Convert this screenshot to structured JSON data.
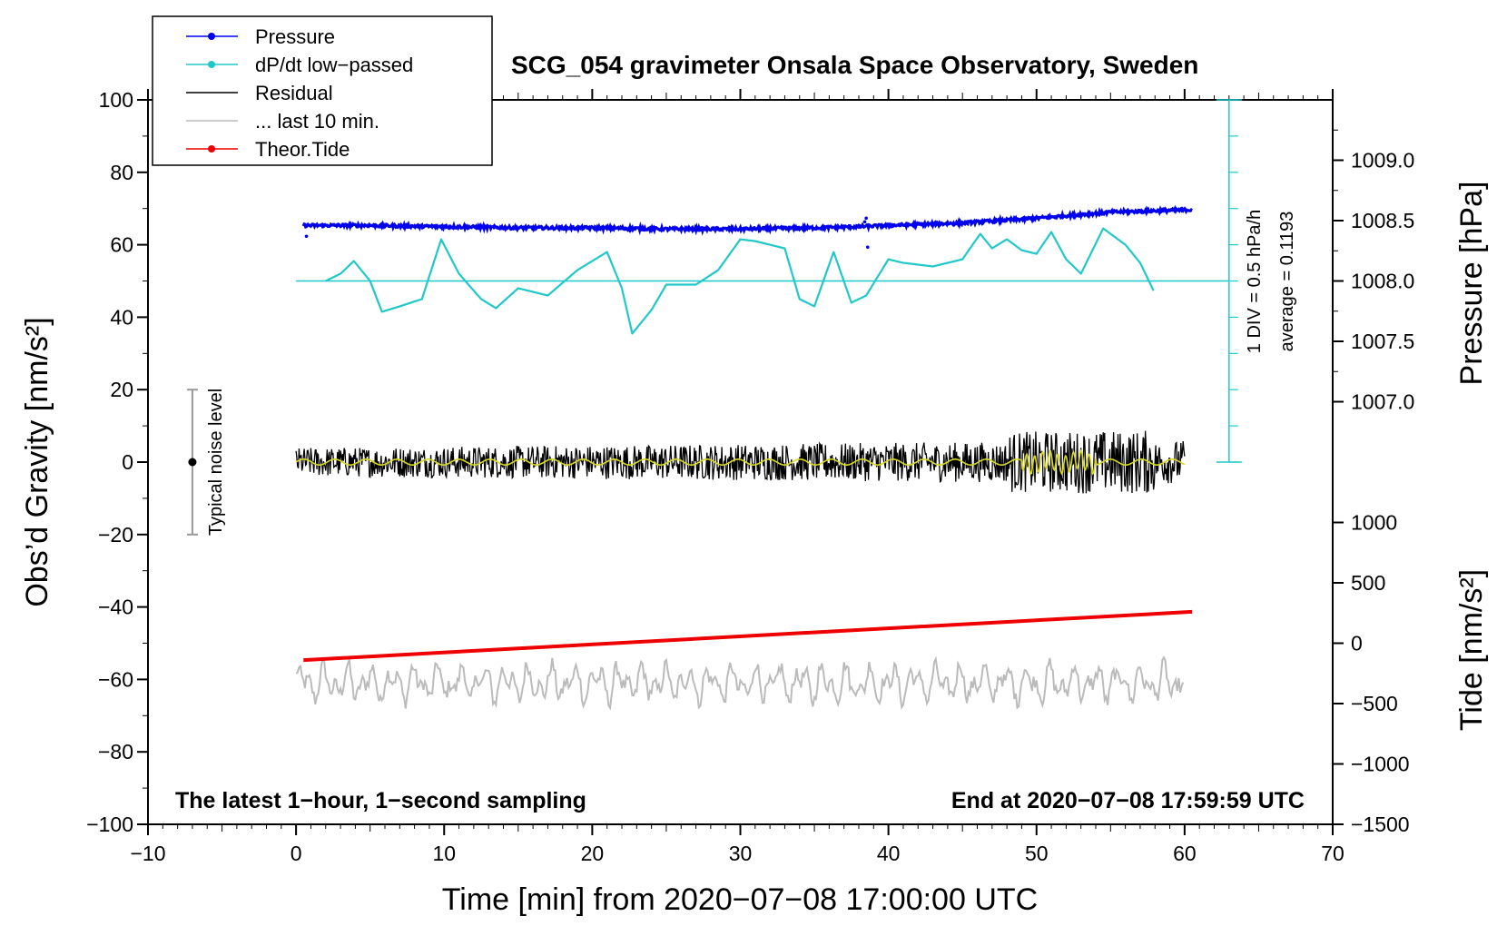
{
  "chart_data": {
    "type": "line",
    "title": "SCG_054 gravimeter Onsala Space Observatory, Sweden",
    "xlabel": "Time [min] from 2020−07−08 17:00:00 UTC",
    "ylabel_left": "Obs’d Gravity [nm/s²]",
    "ylabel_right_pressure": "Pressure [hPa]",
    "ylabel_right_tide": "Tide [nm/s²]",
    "xlim": [
      -10,
      70
    ],
    "ylim": [
      -100,
      100
    ],
    "x_ticks": [
      -10,
      0,
      10,
      20,
      30,
      40,
      50,
      60,
      70
    ],
    "x_tick_labels": [
      "−10",
      "0",
      "10",
      "20",
      "30",
      "40",
      "50",
      "60",
      "70"
    ],
    "y_ticks": [
      100,
      80,
      60,
      40,
      20,
      0,
      -20,
      -40,
      -60,
      -80,
      -100
    ],
    "y_tick_labels": [
      "100",
      "80",
      "60",
      "40",
      "20",
      "0",
      "−20",
      "−40",
      "−60",
      "−80",
      "−100"
    ],
    "pressure_axis": {
      "ticks": [
        1009.0,
        1008.5,
        1008.0,
        1007.5,
        1007.0
      ],
      "tick_labels": [
        "1009.0",
        "1008.5",
        "1008.0",
        "1007.5",
        "1007.0"
      ],
      "ref_value": 1008.0,
      "ref_gravity": 50,
      "gravity_per_hPa": 33.33
    },
    "tide_axis": {
      "ticks": [
        1000,
        500,
        0,
        -500,
        -1000,
        -1500
      ],
      "tick_labels": [
        "1000",
        "500",
        "0",
        "−500",
        "−1000",
        "−1500"
      ],
      "ref_value": 0,
      "ref_gravity": -50,
      "gravity_per_unit": 0.03333
    },
    "legend": [
      {
        "label": "Pressure",
        "color": "#0000ee",
        "marker": true
      },
      {
        "label": "dP/dt low−passed",
        "color": "#20c8c8",
        "marker": true
      },
      {
        "label": "Residual",
        "color": "#000000",
        "marker": false
      },
      {
        "label": "... last 10 min.",
        "color": "#bbbbbb",
        "marker": false
      },
      {
        "label": "Theor.Tide",
        "color": "#ee0000",
        "marker": true
      }
    ],
    "series": [
      {
        "name": "Pressure",
        "color": "#0000ee",
        "unit": "hPa",
        "x": [
          0.5,
          5,
          10,
          15,
          20,
          25,
          30,
          35,
          38,
          40,
          45,
          50,
          55,
          60.5
        ],
        "values": [
          1008.46,
          1008.46,
          1008.45,
          1008.44,
          1008.44,
          1008.43,
          1008.43,
          1008.44,
          1008.45,
          1008.46,
          1008.48,
          1008.52,
          1008.57,
          1008.59
        ]
      },
      {
        "name": "dP/dt low−passed",
        "color": "#20c8c8",
        "unit": "nm/s² (display)",
        "x": [
          2,
          3,
          3.9,
          5,
          5.8,
          7,
          8.5,
          9.8,
          11,
          12.5,
          13.5,
          15,
          17,
          19,
          21,
          22,
          22.7,
          24,
          25,
          27,
          28.5,
          30,
          31,
          33,
          34,
          35,
          36.3,
          37.5,
          38.5,
          40,
          41,
          43,
          45,
          46.2,
          47,
          48,
          49,
          50,
          51,
          52,
          53,
          54.5,
          56,
          57,
          58
        ],
        "values": [
          50,
          52,
          55.5,
          50,
          41.5,
          43,
          45,
          61.5,
          52,
          45,
          42.5,
          48,
          46,
          53,
          58,
          48,
          35.5,
          42,
          49,
          49,
          53,
          61.5,
          61,
          59,
          45,
          43,
          58,
          44,
          46,
          56,
          55,
          54,
          56,
          63,
          59,
          61.5,
          58.5,
          57.5,
          63.5,
          56,
          52,
          64.5,
          60,
          55,
          46.5
        ]
      },
      {
        "name": "Residual",
        "color": "#000000",
        "unit": "nm/s²",
        "x": [
          0,
          60
        ],
        "values": [
          0,
          0
        ],
        "noise_amplitude": [
          4,
          6
        ]
      },
      {
        "name": "... last 10 min.",
        "color": "#bbbbbb",
        "unit": "nm/s² (display)",
        "x": [
          0,
          60
        ],
        "values": [
          -61,
          -61
        ],
        "oscillation_amplitude": 5
      },
      {
        "name": "Theor.Tide",
        "color": "#ee0000",
        "unit": "nm/s²",
        "x": [
          0.5,
          60.5
        ],
        "values": [
          -140,
          260
        ]
      }
    ],
    "noise_level": {
      "label": "Typical noise level",
      "x": -7,
      "center": 0,
      "low": -20,
      "high": 20
    },
    "dpdt_scale": {
      "div_label": "1 DIV = 0.5 hPa/h",
      "average_label": "average = 0.1193",
      "x": 63,
      "y_min": 0,
      "y_max": 100,
      "baseline": 50
    },
    "annotation_left": "The latest 1−hour, 1−second sampling",
    "annotation_right": "End at 2020−07−08 17:59:59 UTC"
  }
}
